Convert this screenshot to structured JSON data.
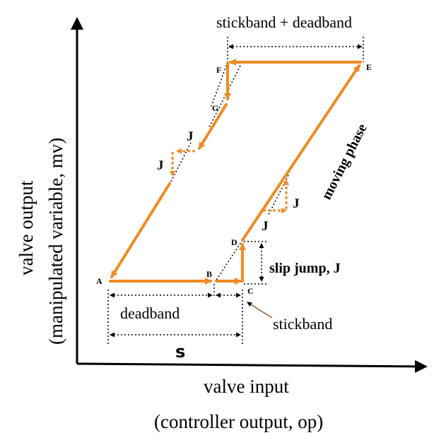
{
  "colors": {
    "path": "#f08a24",
    "axis": "#000000",
    "guide": "#000000",
    "pointer": "#8a5a2b"
  },
  "points": {
    "A": "A",
    "B": "B",
    "C": "C",
    "D": "D",
    "E": "E",
    "F": "F",
    "G": "G"
  },
  "labels": {
    "stickband_deadband": "stickband + deadband",
    "moving_phase": "moving phase",
    "slip_jump": "slip jump, J",
    "deadband": "deadband",
    "stickband": "stickband",
    "s": "s",
    "j": "J"
  },
  "axes": {
    "x_label_line1": "valve input",
    "x_label_line2": "(controller output, op)",
    "y_label_line1": "valve output",
    "y_label_line2": "(manipulated variable, mv)"
  }
}
